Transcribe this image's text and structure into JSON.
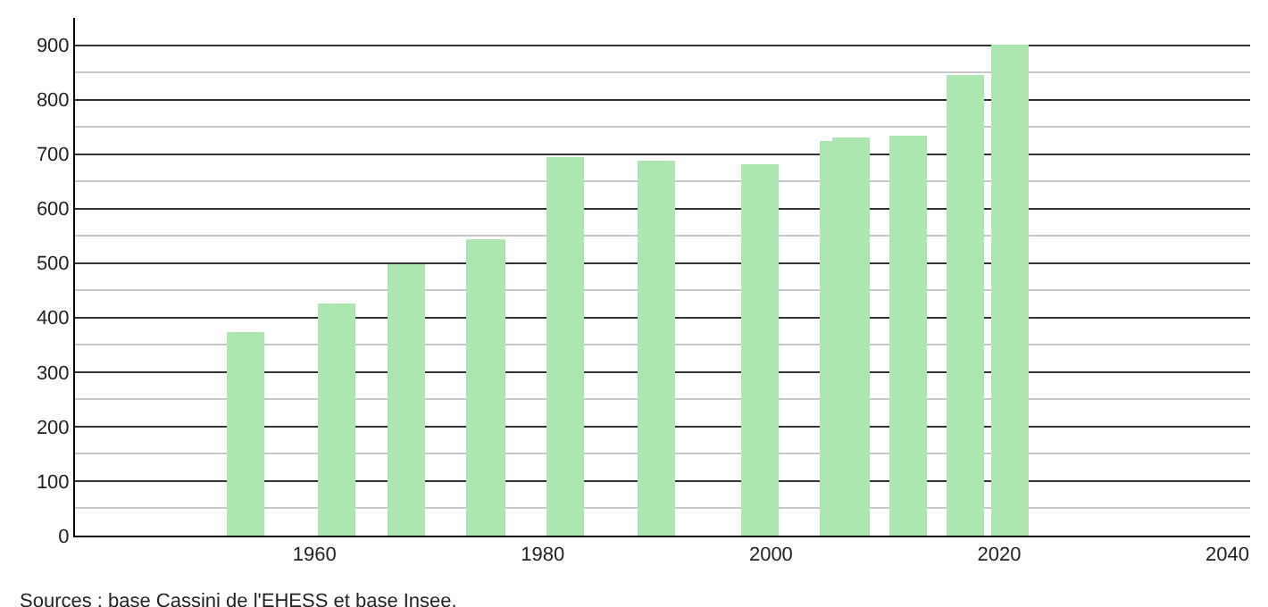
{
  "chart_data": {
    "type": "bar",
    "x": [
      1954,
      1962,
      1968,
      1975,
      1982,
      1990,
      1999,
      2006,
      2007,
      2012,
      2017,
      2021
    ],
    "values": [
      373,
      425,
      498,
      545,
      696,
      689,
      681,
      723,
      730,
      735,
      845,
      900
    ],
    "color": "#ade6b0",
    "xlim": [
      1939,
      2042
    ],
    "xticks": [
      1960,
      1980,
      2000,
      2020,
      2040
    ],
    "ylim": [
      0,
      950
    ],
    "yticks": [
      0,
      100,
      200,
      300,
      400,
      500,
      600,
      700,
      800,
      900
    ],
    "grid": "y",
    "annotations": [
      "Sources : base Cassini de l'EHESS et base Insee."
    ]
  }
}
